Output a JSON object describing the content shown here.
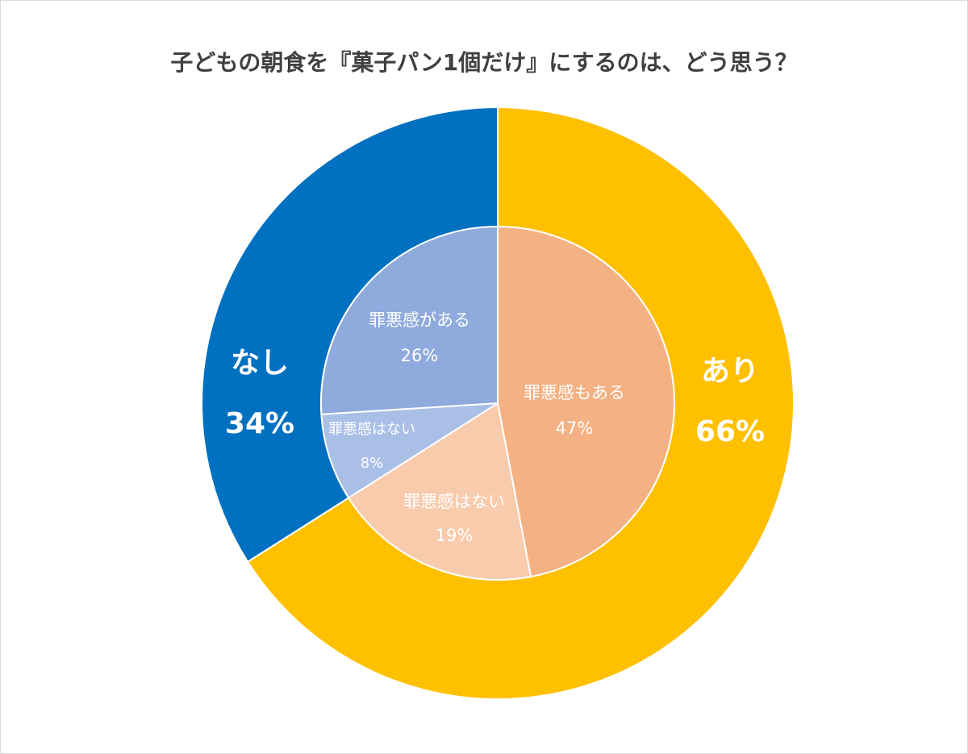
{
  "chart_data": {
    "type": "pie",
    "title": "子どもの朝食を『菓子パン1個だけ』にするのは、どう思う？",
    "outer": [
      {
        "label": "あり",
        "value": 66,
        "display": "66%",
        "color": "#FFC000"
      },
      {
        "label": "なし",
        "value": 34,
        "display": "34%",
        "color": "#0070C0"
      }
    ],
    "inner": [
      {
        "label": "罪悪感もある",
        "value": 47,
        "display": "47%",
        "color": "#F4B183"
      },
      {
        "label": "罪悪感はない",
        "value": 19,
        "display": "19%",
        "color": "#F8CBAD"
      },
      {
        "label": "罪悪感はない",
        "value": 8,
        "display": "8%",
        "color": "#A9BFE6"
      },
      {
        "label": "罪悪感がある",
        "value": 26,
        "display": "26%",
        "color": "#8FAADC"
      }
    ]
  }
}
